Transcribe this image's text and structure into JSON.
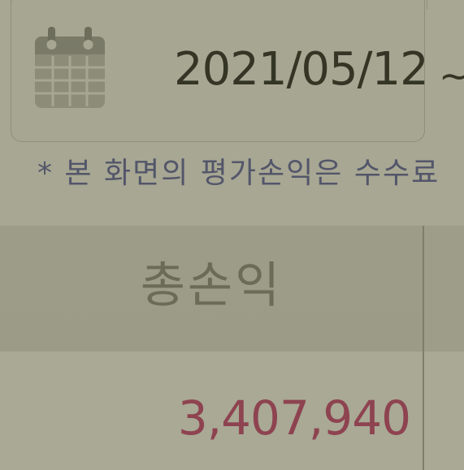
{
  "date_picker": {
    "start_date": "2021/05/12",
    "separator": "~",
    "icon": "calendar-icon"
  },
  "notice": {
    "text": "* 본 화면의 평가손익은 수수료"
  },
  "table": {
    "header": {
      "total_pnl_label": "총손익"
    },
    "row": {
      "total_pnl_value": "3,407,940"
    }
  },
  "colors": {
    "background": "#a7a793",
    "header_bg": "#9c9c88",
    "value_text": "#8e4350",
    "notice_text": "#53566a"
  }
}
